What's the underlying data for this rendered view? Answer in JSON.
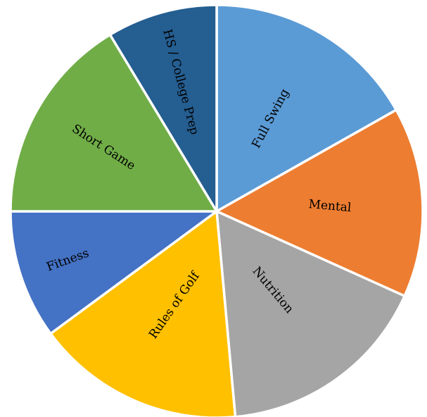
{
  "chart_data": {
    "type": "pie",
    "title": "",
    "legend": "none",
    "slices": [
      {
        "label": "Full Swing",
        "value": 17.5,
        "color": "#5B9BD5"
      },
      {
        "label": "Mental",
        "value": 15.5,
        "color": "#ED7D31"
      },
      {
        "label": "Nutrition",
        "value": 17.5,
        "color": "#A5A5A5"
      },
      {
        "label": "Rules of Golf",
        "value": 17,
        "color": "#FFC000"
      },
      {
        "label": "Fitness",
        "value": 10.5,
        "color": "#4472C4"
      },
      {
        "label": "Short Game",
        "value": 17,
        "color": "#70AD47"
      },
      {
        "label": "HS / College Prep",
        "value": 9,
        "color": "#255E91"
      }
    ]
  }
}
